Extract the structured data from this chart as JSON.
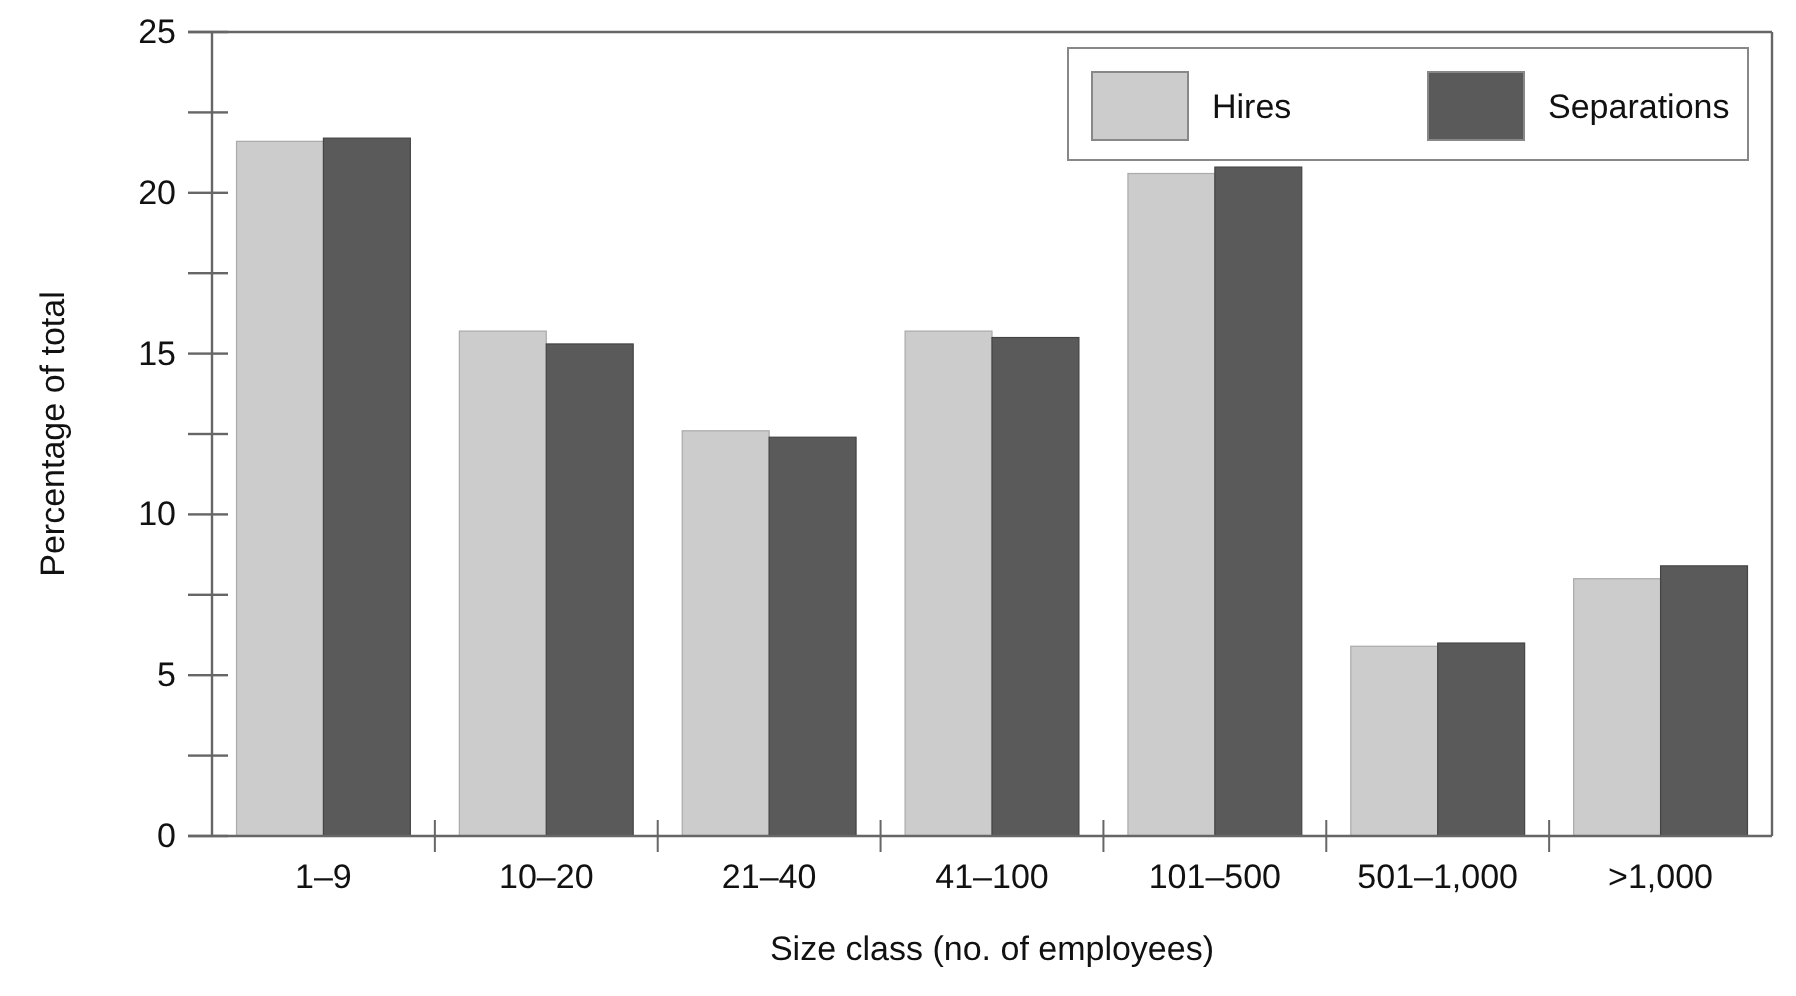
{
  "chart_data": {
    "type": "bar",
    "xlabel": "Size class (no. of employees)",
    "ylabel": "Percentage of total",
    "categories": [
      "1–9",
      "10–20",
      "21–40",
      "41–100",
      "101–500",
      "501–1,000",
      ">1,000"
    ],
    "series": [
      {
        "name": "Hires",
        "color": "#cccccc",
        "values": [
          21.6,
          15.7,
          12.6,
          15.7,
          20.6,
          5.9,
          8.0
        ]
      },
      {
        "name": "Separations",
        "color": "#5a5a5a",
        "values": [
          21.7,
          15.3,
          12.4,
          15.5,
          20.8,
          6.0,
          8.4
        ]
      }
    ],
    "ylim": [
      0,
      25
    ],
    "yticks": [
      0,
      {
        "value": 2.5,
        "label": null
      },
      5,
      {
        "value": 7.5,
        "label": null
      },
      10,
      {
        "value": 12.5,
        "label": null
      },
      15,
      {
        "value": 17.5,
        "label": null
      },
      20,
      {
        "value": 22.5,
        "label": null
      },
      25
    ],
    "legend": "top right",
    "grid": false
  }
}
